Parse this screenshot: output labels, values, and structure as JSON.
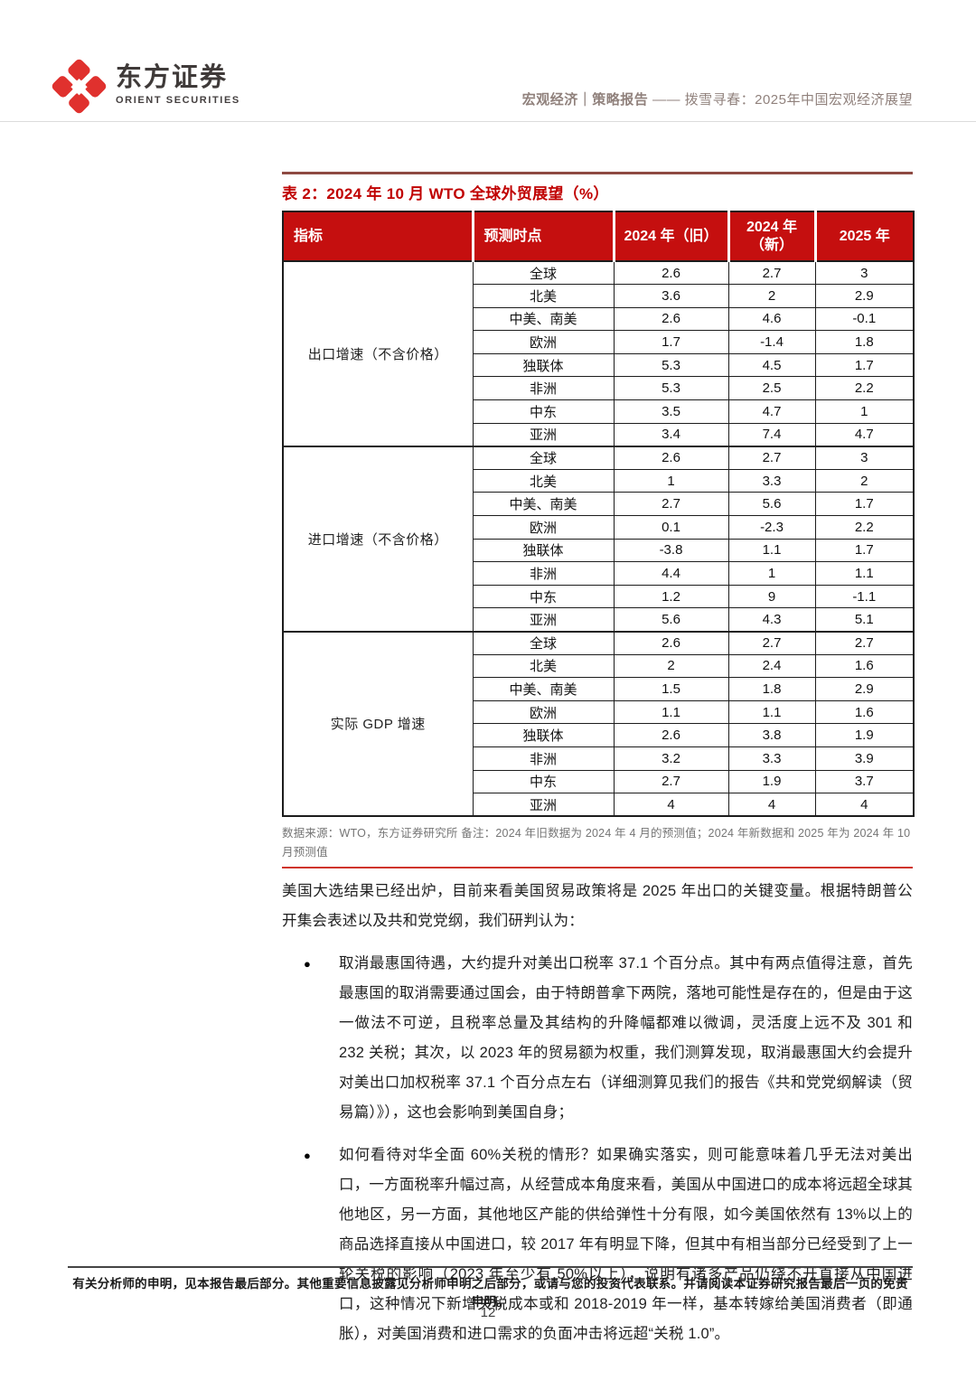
{
  "header": {
    "brand_cn": "东方证券",
    "brand_en": "ORIENT SECURITIES",
    "doc_category": "宏观经济",
    "divider": "｜",
    "doc_type": "策略报告",
    "dash": "——",
    "doc_title": "拨雪寻春：2025年中国宏观经济展望"
  },
  "table": {
    "caption": "表 2：2024 年 10 月 WTO 全球外贸展望（%）",
    "columns": [
      "指标",
      "预测时点",
      "2024 年（旧）",
      "2024 年（新）",
      "2025 年"
    ],
    "groups": [
      {
        "indicator": "出口增速（不含价格）",
        "rows": [
          [
            "全球",
            "2.6",
            "2.7",
            "3"
          ],
          [
            "北美",
            "3.6",
            "2",
            "2.9"
          ],
          [
            "中美、南美",
            "2.6",
            "4.6",
            "-0.1"
          ],
          [
            "欧洲",
            "1.7",
            "-1.4",
            "1.8"
          ],
          [
            "独联体",
            "5.3",
            "4.5",
            "1.7"
          ],
          [
            "非洲",
            "5.3",
            "2.5",
            "2.2"
          ],
          [
            "中东",
            "3.5",
            "4.7",
            "1"
          ],
          [
            "亚洲",
            "3.4",
            "7.4",
            "4.7"
          ]
        ]
      },
      {
        "indicator": "进口增速（不含价格）",
        "rows": [
          [
            "全球",
            "2.6",
            "2.7",
            "3"
          ],
          [
            "北美",
            "1",
            "3.3",
            "2"
          ],
          [
            "中美、南美",
            "2.7",
            "5.6",
            "1.7"
          ],
          [
            "欧洲",
            "0.1",
            "-2.3",
            "2.2"
          ],
          [
            "独联体",
            "-3.8",
            "1.1",
            "1.7"
          ],
          [
            "非洲",
            "4.4",
            "1",
            "1.1"
          ],
          [
            "中东",
            "1.2",
            "9",
            "-1.1"
          ],
          [
            "亚洲",
            "5.6",
            "4.3",
            "5.1"
          ]
        ]
      },
      {
        "indicator": "实际 GDP 增速",
        "rows": [
          [
            "全球",
            "2.6",
            "2.7",
            "2.7"
          ],
          [
            "北美",
            "2",
            "2.4",
            "1.6"
          ],
          [
            "中美、南美",
            "1.5",
            "1.8",
            "2.9"
          ],
          [
            "欧洲",
            "1.1",
            "1.1",
            "1.6"
          ],
          [
            "独联体",
            "2.6",
            "3.8",
            "1.9"
          ],
          [
            "非洲",
            "3.2",
            "3.3",
            "3.9"
          ],
          [
            "中东",
            "2.7",
            "1.9",
            "3.7"
          ],
          [
            "亚洲",
            "4",
            "4",
            "4"
          ]
        ]
      }
    ],
    "source_note": "数据来源：WTO，东方证券研究所 备注：2024 年旧数据为 2024 年 4 月的预测值；2024 年新数据和 2025 年为 2024 年 10 月预测值"
  },
  "body": {
    "paragraph": "美国大选结果已经出炉，目前来看美国贸易政策将是 2025 年出口的关键变量。根据特朗普公开集会表述以及共和党党纲，我们研判认为：",
    "bullet_marker": "●",
    "bullets": [
      "取消最惠国待遇，大约提升对美出口税率 37.1 个百分点。其中有两点值得注意，首先最惠国的取消需要通过国会，由于特朗普拿下两院，落地可能性是存在的，但是由于这一做法不可逆，且税率总量及其结构的升降幅都难以微调，灵活度上远不及 301 和 232 关税；其次，以 2023 年的贸易额为权重，我们测算发现，取消最惠国大约会提升对美出口加权税率 37.1 个百分点左右（详细测算见我们的报告《共和党党纲解读（贸易篇）》），这也会影响到美国自身；",
      "如何看待对华全面 60%关税的情形？如果确实落实，则可能意味着几乎无法对美出口，一方面税率升幅过高，从经营成本角度来看，美国从中国进口的成本将远超全球其他地区，另一方面，其他地区产能的供给弹性十分有限，如今美国依然有 13%以上的商品选择直接从中国进口，较 2017 年有明显下降，但其中有相当部分已经受到了上一轮关税的影响（2023 年至少有 50%以上），说明有诸多产品仍绕不开直接从中国进口，这种情况下新增关税成本或和 2018-2019 年一样，基本转嫁给美国消费者（即通胀），对美国消费和进口需求的负面冲击将远超“关税 1.0”。"
    ]
  },
  "footer": {
    "disclaimer": "有关分析师的申明，见本报告最后部分。其他重要信息披露见分析师申明之后部分，或请与您的投资代表联系。并请阅读本证券研究报告最后一页的免责申明。",
    "page_number": "12"
  },
  "colors": {
    "brand_red": "#e0312e",
    "caption_red": "#c00000",
    "table_header_red": "#c50f0f",
    "table_top_rule": "#8e4a42",
    "table_bottom_rule": "#d0342c"
  }
}
